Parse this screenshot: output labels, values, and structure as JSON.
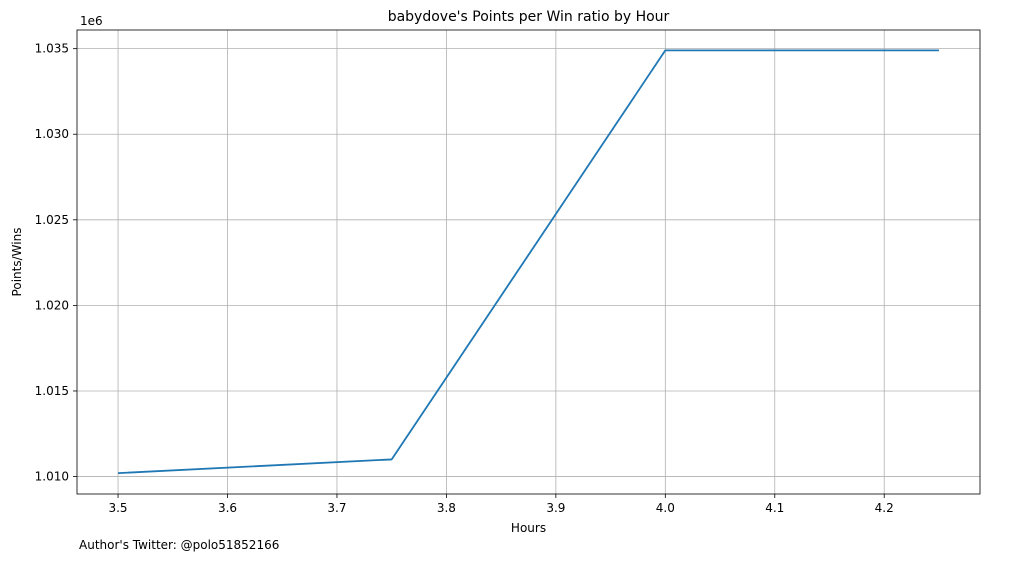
{
  "chart_data": {
    "type": "line",
    "title": "babydove's Points per Win ratio by Hour",
    "xlabel": "Hours",
    "ylabel": "Points/Wins",
    "y_offset_label": "1e6",
    "x": [
      3.5,
      3.75,
      4.0,
      4.25
    ],
    "series": [
      {
        "values": [
          1.0102,
          1.011,
          1.0349,
          1.0349
        ]
      }
    ],
    "xlim": [
      3.4625,
      4.2875
    ],
    "ylim": [
      1.00898,
      1.03609
    ],
    "x_ticks": [
      {
        "value": 3.5,
        "label": "3.5"
      },
      {
        "value": 3.6,
        "label": "3.6"
      },
      {
        "value": 3.7,
        "label": "3.7"
      },
      {
        "value": 3.8,
        "label": "3.8"
      },
      {
        "value": 3.9,
        "label": "3.9"
      },
      {
        "value": 4.0,
        "label": "4.0"
      },
      {
        "value": 4.1,
        "label": "4.1"
      },
      {
        "value": 4.2,
        "label": "4.2"
      }
    ],
    "y_ticks": [
      {
        "value": 1.01,
        "label": "1.010"
      },
      {
        "value": 1.015,
        "label": "1.015"
      },
      {
        "value": 1.02,
        "label": "1.020"
      },
      {
        "value": 1.025,
        "label": "1.025"
      },
      {
        "value": 1.03,
        "label": "1.030"
      },
      {
        "value": 1.035,
        "label": "1.035"
      }
    ],
    "grid": true,
    "line_color": "#1f77b4",
    "grid_color": "#b0b0b0"
  },
  "footer": {
    "text": "Author's Twitter: @polo51852166"
  }
}
